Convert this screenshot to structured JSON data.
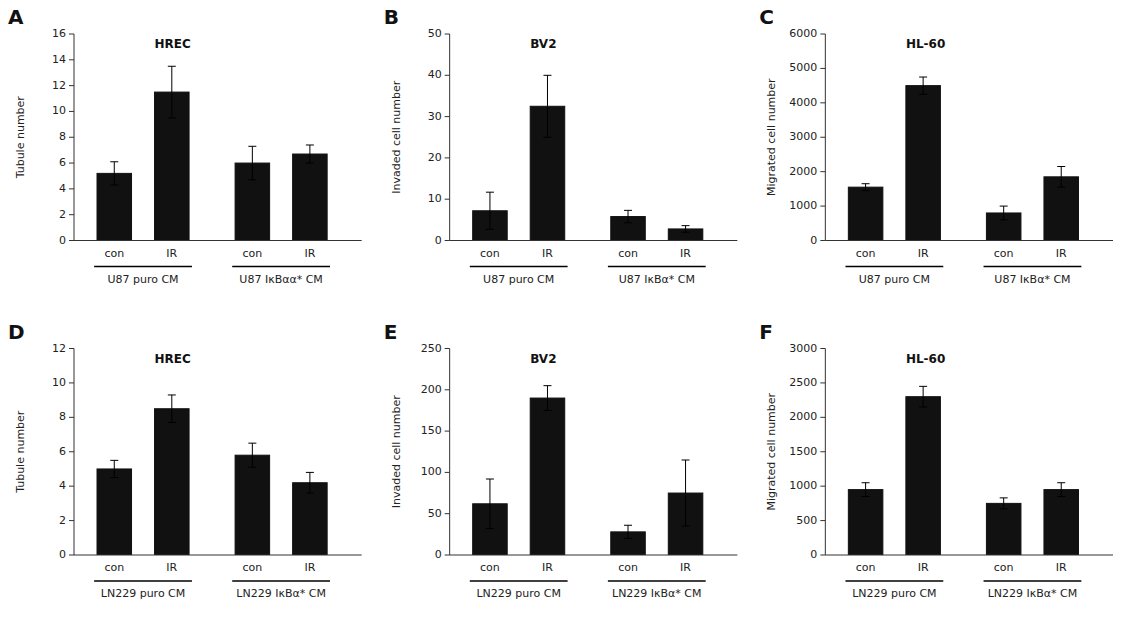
{
  "chart_data": [
    {
      "type": "bar",
      "title": "A",
      "subtitle": "HREC",
      "ylabel": "Tubule number",
      "categories": [
        "con",
        "IR",
        "con",
        "IR"
      ],
      "values": [
        5.2,
        11.5,
        6.0,
        6.7
      ],
      "errors": [
        0.9,
        2.0,
        1.3,
        0.7
      ],
      "group_labels": [
        "U87 puro CM",
        "U87 IκBαα* CM"
      ],
      "color": "#111111",
      "ylim": [
        0,
        16
      ],
      "yticks": [
        0,
        2,
        4,
        6,
        8,
        10,
        12,
        14,
        16
      ],
      "grid": false
    },
    {
      "type": "bar",
      "title": "B",
      "subtitle": "BV2",
      "ylabel": "Invaded cell number",
      "categories": [
        "con",
        "IR",
        "con",
        "IR"
      ],
      "values": [
        7.2,
        32.5,
        5.8,
        2.8
      ],
      "errors": [
        4.5,
        7.5,
        1.5,
        0.8
      ],
      "group_labels": [
        "U87 puro CM",
        "U87 IκBα* CM"
      ],
      "color": "#111111",
      "ylim": [
        0,
        50
      ],
      "yticks": [
        0,
        10,
        20,
        30,
        40,
        50
      ],
      "grid": false
    },
    {
      "type": "bar",
      "title": "C",
      "subtitle": "HL-60",
      "ylabel": "Migrated cell number",
      "categories": [
        "con",
        "IR",
        "con",
        "IR"
      ],
      "values": [
        1550,
        4500,
        800,
        1850
      ],
      "errors": [
        100,
        250,
        200,
        300
      ],
      "group_labels": [
        "U87 puro CM",
        "U87 IκBα* CM"
      ],
      "color": "#111111",
      "ylim": [
        0,
        6000
      ],
      "yticks": [
        0,
        1000,
        2000,
        3000,
        4000,
        5000,
        6000
      ],
      "grid": false
    },
    {
      "type": "bar",
      "title": "D",
      "subtitle": "HREC",
      "ylabel": "Tubule number",
      "categories": [
        "con",
        "IR",
        "con",
        "IR"
      ],
      "values": [
        5.0,
        8.5,
        5.8,
        4.2
      ],
      "errors": [
        0.5,
        0.8,
        0.7,
        0.6
      ],
      "group_labels": [
        "LN229 puro CM",
        "LN229 IκBα* CM"
      ],
      "color": "#111111",
      "ylim": [
        0,
        12
      ],
      "yticks": [
        0,
        2,
        4,
        6,
        8,
        10,
        12
      ],
      "grid": false
    },
    {
      "type": "bar",
      "title": "E",
      "subtitle": "BV2",
      "ylabel": "Invaded cell number",
      "categories": [
        "con",
        "IR",
        "con",
        "IR"
      ],
      "values": [
        62,
        190,
        28,
        75
      ],
      "errors": [
        30,
        15,
        8,
        40
      ],
      "group_labels": [
        "LN229 puro CM",
        "LN229 IκBα* CM"
      ],
      "color": "#111111",
      "ylim": [
        0,
        250
      ],
      "yticks": [
        0,
        50,
        100,
        150,
        200,
        250
      ],
      "grid": false
    },
    {
      "type": "bar",
      "title": "F",
      "subtitle": "HL-60",
      "ylabel": "Migrated cell number",
      "categories": [
        "con",
        "IR",
        "con",
        "IR"
      ],
      "values": [
        950,
        2300,
        750,
        950
      ],
      "errors": [
        100,
        150,
        80,
        100
      ],
      "group_labels": [
        "LN229 puro CM",
        "LN229 IκBα* CM"
      ],
      "color": "#111111",
      "ylim": [
        0,
        3000
      ],
      "yticks": [
        0,
        500,
        1000,
        1500,
        2000,
        2500,
        3000
      ],
      "grid": false
    }
  ]
}
